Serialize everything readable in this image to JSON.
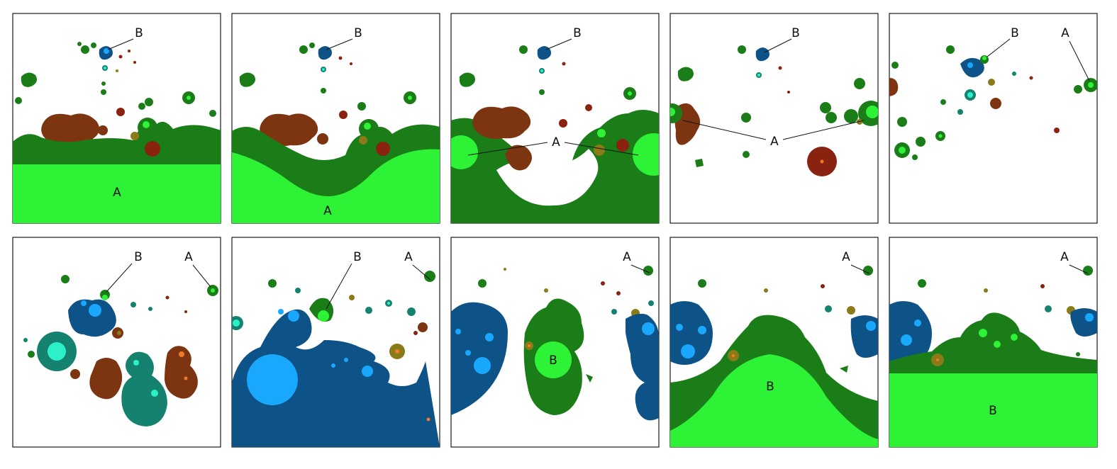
{
  "figure": {
    "type": "simulation-snapshot-sequence",
    "rows": 2,
    "columns": 5,
    "colors": {
      "green_dark": "#1a7d18",
      "green_light": "#2ef236",
      "blue_dark": "#0e5387",
      "blue_light": "#1aa8ff",
      "teal_dark": "#15826f",
      "teal_light": "#2cf0c8",
      "brown": "#7d3410",
      "dark_red": "#8a2210",
      "olive": "#8a7a18",
      "orange": "#f07a28"
    },
    "panels": [
      {
        "id": "1",
        "labels": [
          "B",
          "A"
        ]
      },
      {
        "id": "2",
        "labels": [
          "B",
          "A"
        ]
      },
      {
        "id": "3",
        "labels": [
          "B",
          "A"
        ]
      },
      {
        "id": "4",
        "labels": [
          "B",
          "A"
        ]
      },
      {
        "id": "5",
        "labels": [
          "B",
          "A"
        ]
      },
      {
        "id": "6",
        "labels": [
          "B",
          "A"
        ]
      },
      {
        "id": "7",
        "labels": [
          "B",
          "A"
        ]
      },
      {
        "id": "8",
        "labels": [
          "A",
          "B"
        ]
      },
      {
        "id": "9",
        "labels": [
          "A",
          "B"
        ]
      },
      {
        "id": "10",
        "labels": [
          "A",
          "B"
        ]
      }
    ]
  }
}
